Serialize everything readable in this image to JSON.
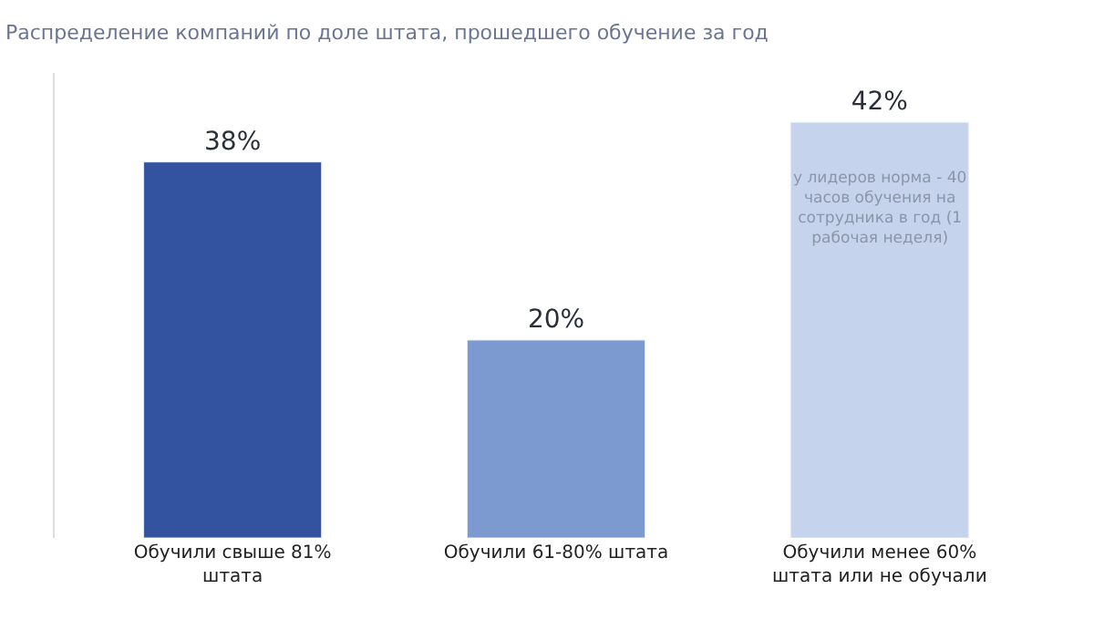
{
  "chart_data": {
    "type": "bar",
    "subtitle": "Распределение компаний по доле штата, прошедшего обучение за год",
    "categories": [
      "Обучили свыше 81% штата",
      "Обучили 61-80% штата",
      "Обучили менее 60% штата или не обучали"
    ],
    "values": [
      38,
      20,
      42
    ],
    "colors": [
      "#3353a0",
      "#7c9ad0",
      "#c6d3ec"
    ],
    "value_labels": [
      "38%",
      "20%",
      "42%"
    ],
    "ylim": [
      0,
      47
    ],
    "tick_labels": "x",
    "legend": false,
    "annotations": [
      "у лидеров норма - 40 часов обучения на сотрудника в год (1 рабочая неделя)"
    ]
  }
}
